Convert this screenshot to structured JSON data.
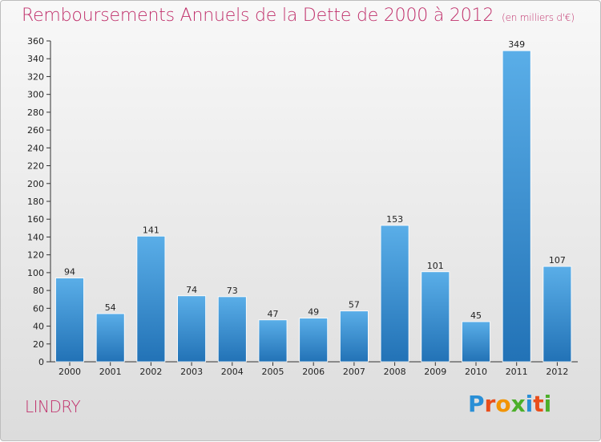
{
  "title": "Remboursements Annuels de la Dette de 2000 à 2012",
  "subtitle": "(en milliers d'€)",
  "town": "LINDRY",
  "logo": {
    "letters": [
      "P",
      "r",
      "o",
      "x",
      "i",
      "t",
      "i"
    ],
    "colors": [
      "#2a8fd6",
      "#e94e1b",
      "#f29400",
      "#4caf2a",
      "#2a8fd6",
      "#e94e1b",
      "#4caf2a"
    ]
  },
  "colors": {
    "accent": "#c0306b",
    "bar_top": "#5aaee8",
    "bar_bottom": "#2272b6"
  },
  "chart_data": {
    "type": "bar",
    "title": "Remboursements Annuels de la Dette de 2000 à 2012",
    "xlabel": "",
    "ylabel": "",
    "categories": [
      "2000",
      "2001",
      "2002",
      "2003",
      "2004",
      "2005",
      "2006",
      "2007",
      "2008",
      "2009",
      "2010",
      "2011",
      "2012"
    ],
    "values": [
      94,
      54,
      141,
      74,
      73,
      47,
      49,
      57,
      153,
      101,
      45,
      349,
      107
    ],
    "ylim": [
      0,
      360
    ],
    "yticks": [
      0,
      20,
      40,
      60,
      80,
      100,
      120,
      140,
      160,
      180,
      200,
      220,
      240,
      260,
      280,
      300,
      320,
      340,
      360
    ],
    "grid": false,
    "legend": "none"
  }
}
